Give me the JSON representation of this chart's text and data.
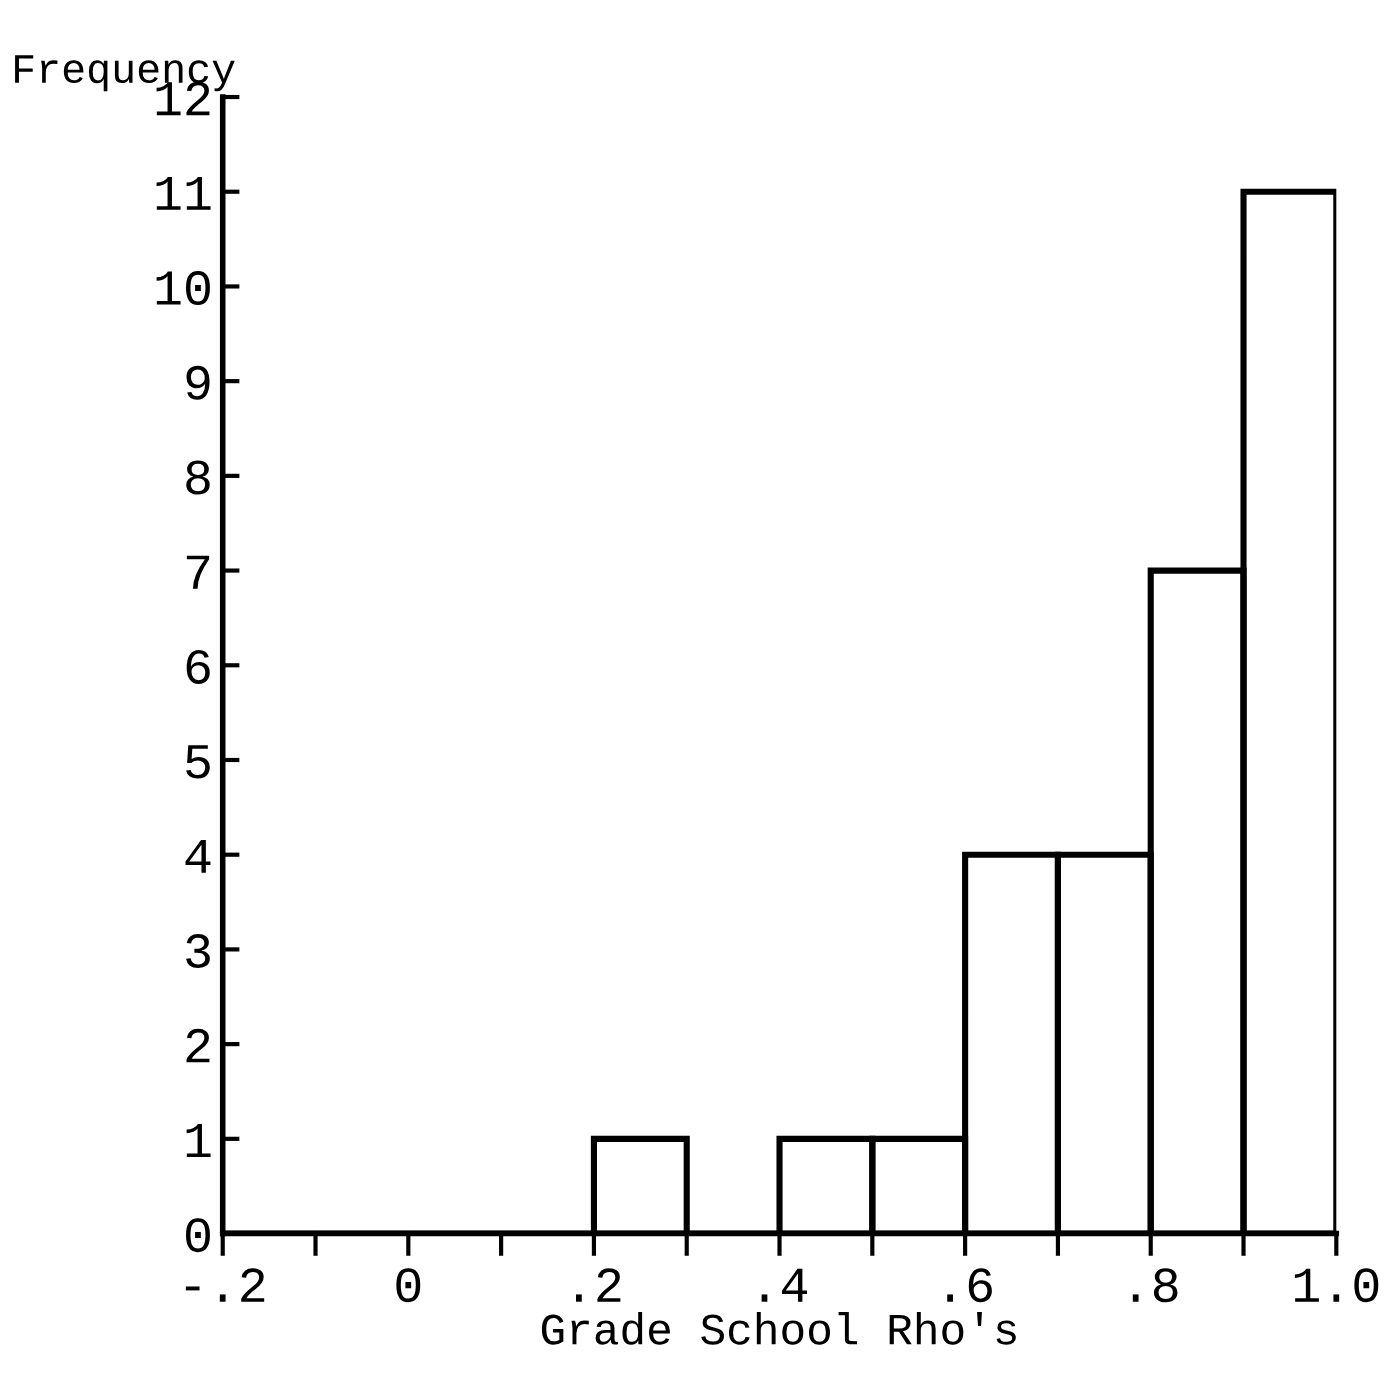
{
  "chart_data": {
    "type": "histogram",
    "xlabel": "Grade School Rho's",
    "ylabel": "Frequency",
    "bins": [
      -0.2,
      -0.1,
      0,
      0.1,
      0.2,
      0.3,
      0.4,
      0.5,
      0.6,
      0.7,
      0.8,
      0.9,
      1.0
    ],
    "values": [
      0,
      0,
      0,
      0,
      1,
      0,
      1,
      1,
      4,
      4,
      7,
      11
    ],
    "color": "#000000",
    "xlim": [
      -0.2,
      1.0
    ],
    "xticks": [
      {
        "value": -0.2,
        "label": "-.2"
      },
      {
        "value": -0.1,
        "label": null
      },
      {
        "value": 0,
        "label": "0"
      },
      {
        "value": 0.1,
        "label": null
      },
      {
        "value": 0.2,
        "label": ".2"
      },
      {
        "value": 0.3,
        "label": null
      },
      {
        "value": 0.4,
        "label": ".4"
      },
      {
        "value": 0.5,
        "label": null
      },
      {
        "value": 0.6,
        "label": ".6"
      },
      {
        "value": 0.7,
        "label": null
      },
      {
        "value": 0.8,
        "label": ".8"
      },
      {
        "value": 0.9,
        "label": null
      },
      {
        "value": 1.0,
        "label": "1.0"
      }
    ],
    "ylim": [
      0,
      12
    ],
    "yticks": [
      0,
      1,
      2,
      3,
      4,
      5,
      6,
      7,
      8,
      9,
      10,
      11,
      12
    ],
    "grid": false,
    "legend": false
  }
}
